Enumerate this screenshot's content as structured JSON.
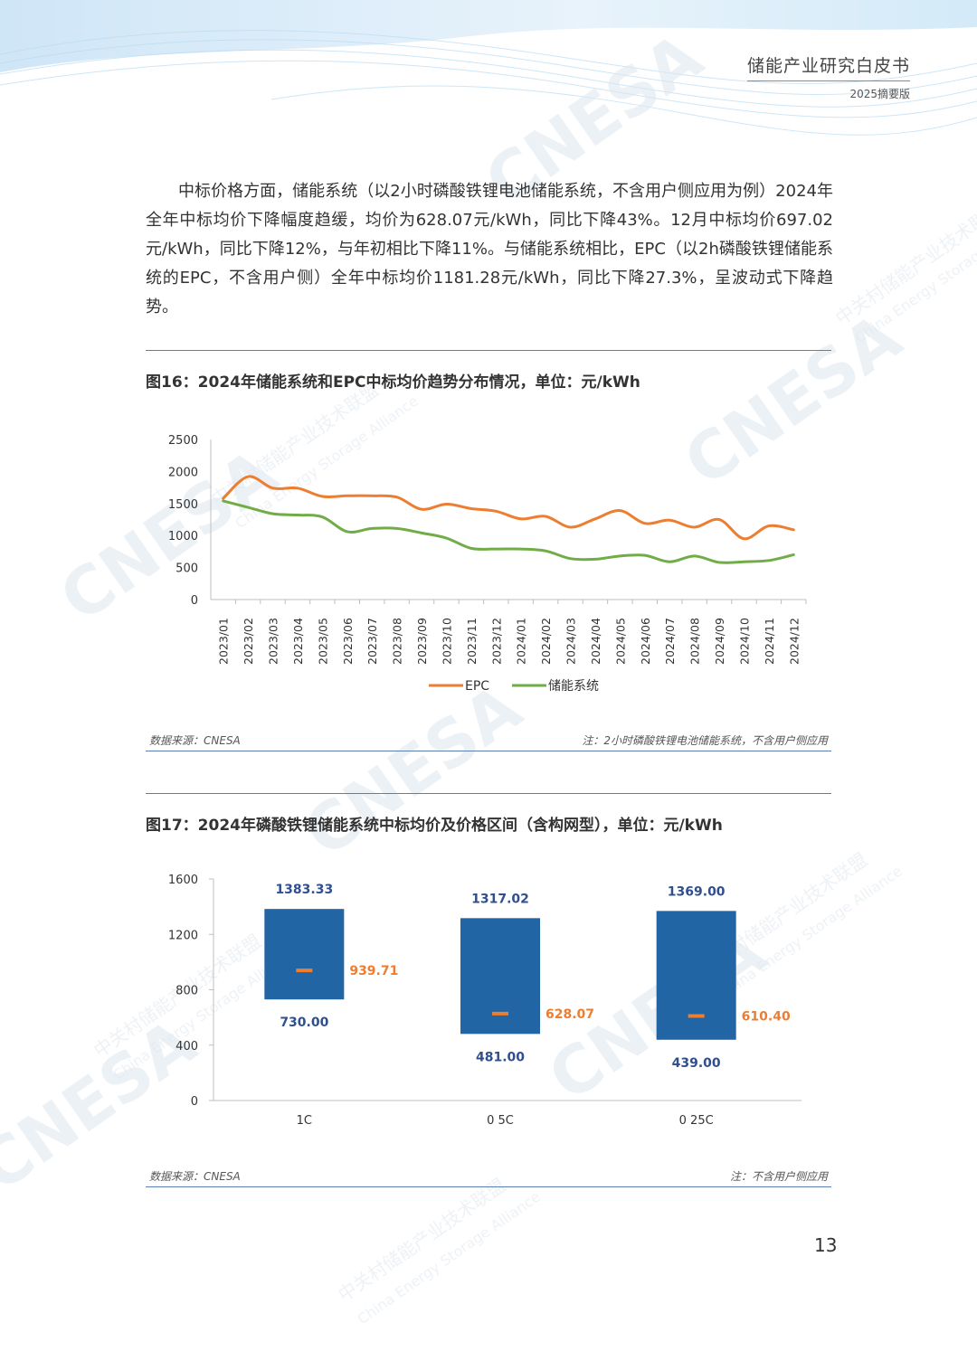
{
  "header": {
    "title": "储能产业研究白皮书",
    "subtitle": "2025摘要版"
  },
  "intro_paragraph": "中标价格方面，储能系统（以2小时磷酸铁锂电池储能系统，不含用户侧应用为例）2024年全年中标均价下降幅度趋缓，均价为628.07元/kWh，同比下降43%。12月中标均价697.02元/kWh，同比下降12%，与年初相比下降11%。与储能系统相比，EPC（以2h磷酸铁锂储能系统的EPC，不含用户侧）全年中标均价1181.28元/kWh，同比下降27.3%，呈波动式下降趋势。",
  "figure16": {
    "title": "图16：2024年储能系统和EPC中标均价趋势分布情况，单位：元/kWh",
    "source": "数据来源：CNESA",
    "note": "注：2小时磷酸铁锂电池储能系统，不含用户侧应用"
  },
  "figure17": {
    "title": "图17：2024年磷酸铁锂储能系统中标均价及价格区间（含构网型），单位：元/kWh",
    "source": "数据来源：CNESA",
    "note": "注：不含用户侧应用"
  },
  "page_number": "13",
  "watermark": {
    "brand": "CNESA",
    "cn": "中关村储能产业技术联盟",
    "en": "China Energy Storage Alliance"
  },
  "colors": {
    "epc": "#ed7d31",
    "storage": "#70ad47",
    "bar": "#2265a4",
    "rule": "#5b7fb3",
    "value_blue": "#2f4f8f",
    "value_orange": "#ed7d31"
  },
  "chart_data": [
    {
      "type": "line",
      "x": [
        "2023/01",
        "2023/02",
        "2023/03",
        "2023/04",
        "2023/05",
        "2023/06",
        "2023/07",
        "2023/08",
        "2023/09",
        "2023/10",
        "2023/11",
        "2023/12",
        "2024/01",
        "2024/02",
        "2024/03",
        "2024/04",
        "2024/05",
        "2024/06",
        "2024/07",
        "2024/08",
        "2024/09",
        "2024/10",
        "2024/11",
        "2024/12"
      ],
      "series": [
        {
          "name": "EPC",
          "values": [
            1580,
            1920,
            1740,
            1740,
            1610,
            1620,
            1620,
            1600,
            1410,
            1490,
            1420,
            1380,
            1260,
            1300,
            1130,
            1260,
            1390,
            1190,
            1240,
            1130,
            1250,
            950,
            1150,
            1090
          ]
        },
        {
          "name": "储能系统",
          "values": [
            1540,
            1440,
            1340,
            1320,
            1290,
            1060,
            1110,
            1110,
            1040,
            960,
            800,
            790,
            790,
            760,
            640,
            630,
            680,
            690,
            590,
            680,
            580,
            590,
            610,
            700
          ]
        }
      ],
      "ylim": [
        0,
        2500
      ],
      "yticks": [
        0,
        500,
        1000,
        1500,
        2000,
        2500
      ],
      "legend": "bottom"
    },
    {
      "type": "bar",
      "subtype": "floating range with average marker",
      "categories": [
        "1C",
        "0.5C",
        "0.25C"
      ],
      "category_labels": [
        "1C",
        "0 5C",
        "0 25C"
      ],
      "max": [
        1383.33,
        1317.02,
        1369.0
      ],
      "min": [
        730.0,
        481.0,
        439.0
      ],
      "avg": [
        939.71,
        628.07,
        610.4
      ],
      "max_labels": [
        "1383.33",
        "1317.02",
        "1369.00"
      ],
      "min_labels": [
        "730.00",
        "481.00",
        "439.00"
      ],
      "avg_labels": [
        "939.71",
        "628.07",
        "610.40"
      ],
      "ylim": [
        0,
        1600
      ],
      "yticks": [
        0,
        400,
        800,
        1200,
        1600
      ]
    }
  ]
}
